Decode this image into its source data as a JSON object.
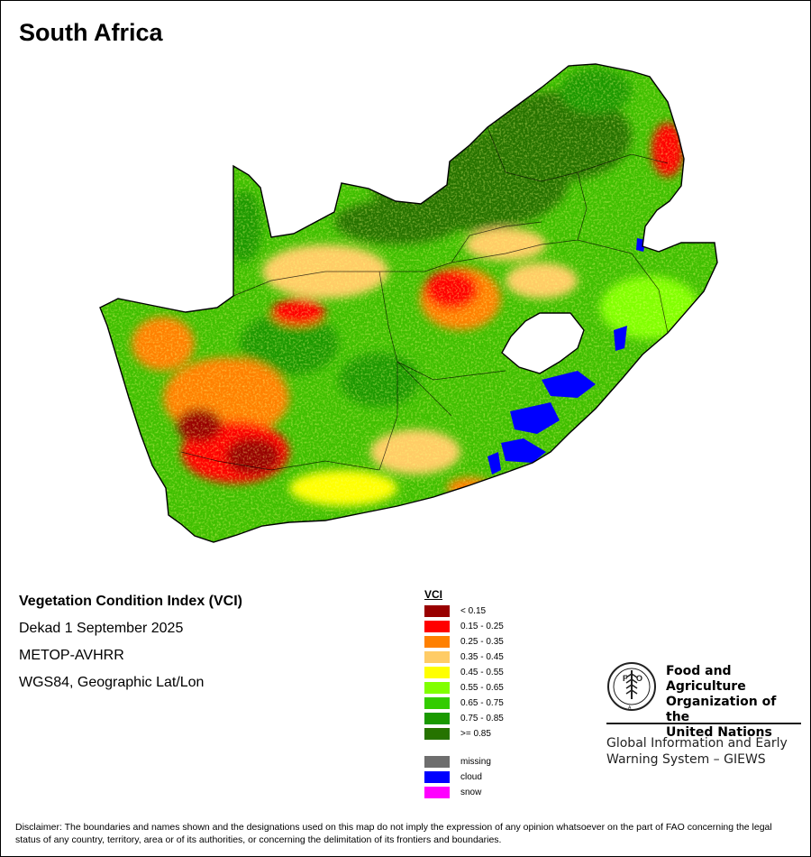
{
  "map": {
    "title": "South Africa",
    "info_lines": [
      "Vegetation Condition Index (VCI)",
      "Dekad 1 September 2025",
      "METOP-AVHRR",
      "WGS84, Geographic Lat/Lon"
    ]
  },
  "legend": {
    "title": "VCI",
    "classes": [
      {
        "label": "< 0.15",
        "color": "#990000"
      },
      {
        "label": "0.15 - 0.25",
        "color": "#ff0000"
      },
      {
        "label": "0.25 - 0.35",
        "color": "#ff8000"
      },
      {
        "label": "0.35 - 0.45",
        "color": "#ffcc66"
      },
      {
        "label": "0.45 - 0.55",
        "color": "#ffff00"
      },
      {
        "label": "0.55 - 0.65",
        "color": "#80ff00"
      },
      {
        "label": "0.65 - 0.75",
        "color": "#33cc00"
      },
      {
        "label": "0.75 - 0.85",
        "color": "#1a9900"
      },
      {
        "label": ">= 0.85",
        "color": "#267300"
      }
    ],
    "extra": [
      {
        "label": "missing",
        "color": "#6e6e6e"
      },
      {
        "label": "cloud",
        "color": "#0000ff"
      },
      {
        "label": "snow",
        "color": "#ff00ff"
      }
    ]
  },
  "logo": {
    "org_line1": "Food and Agriculture",
    "org_line2": "Organization of the",
    "org_line3": "United Nations",
    "emblem_text": "FIAT PANIS",
    "giews_line1": "Global Information and Early",
    "giews_line2": "Warning System – GIEWS"
  },
  "disclaimer": "Disclaimer: The boundaries and names shown and the designations used on this map do not imply the expression of any opinion whatsoever on the part of FAO concerning the legal status of any country, territory, area or of its authorities, or concerning the delimitation of its frontiers and boundaries."
}
